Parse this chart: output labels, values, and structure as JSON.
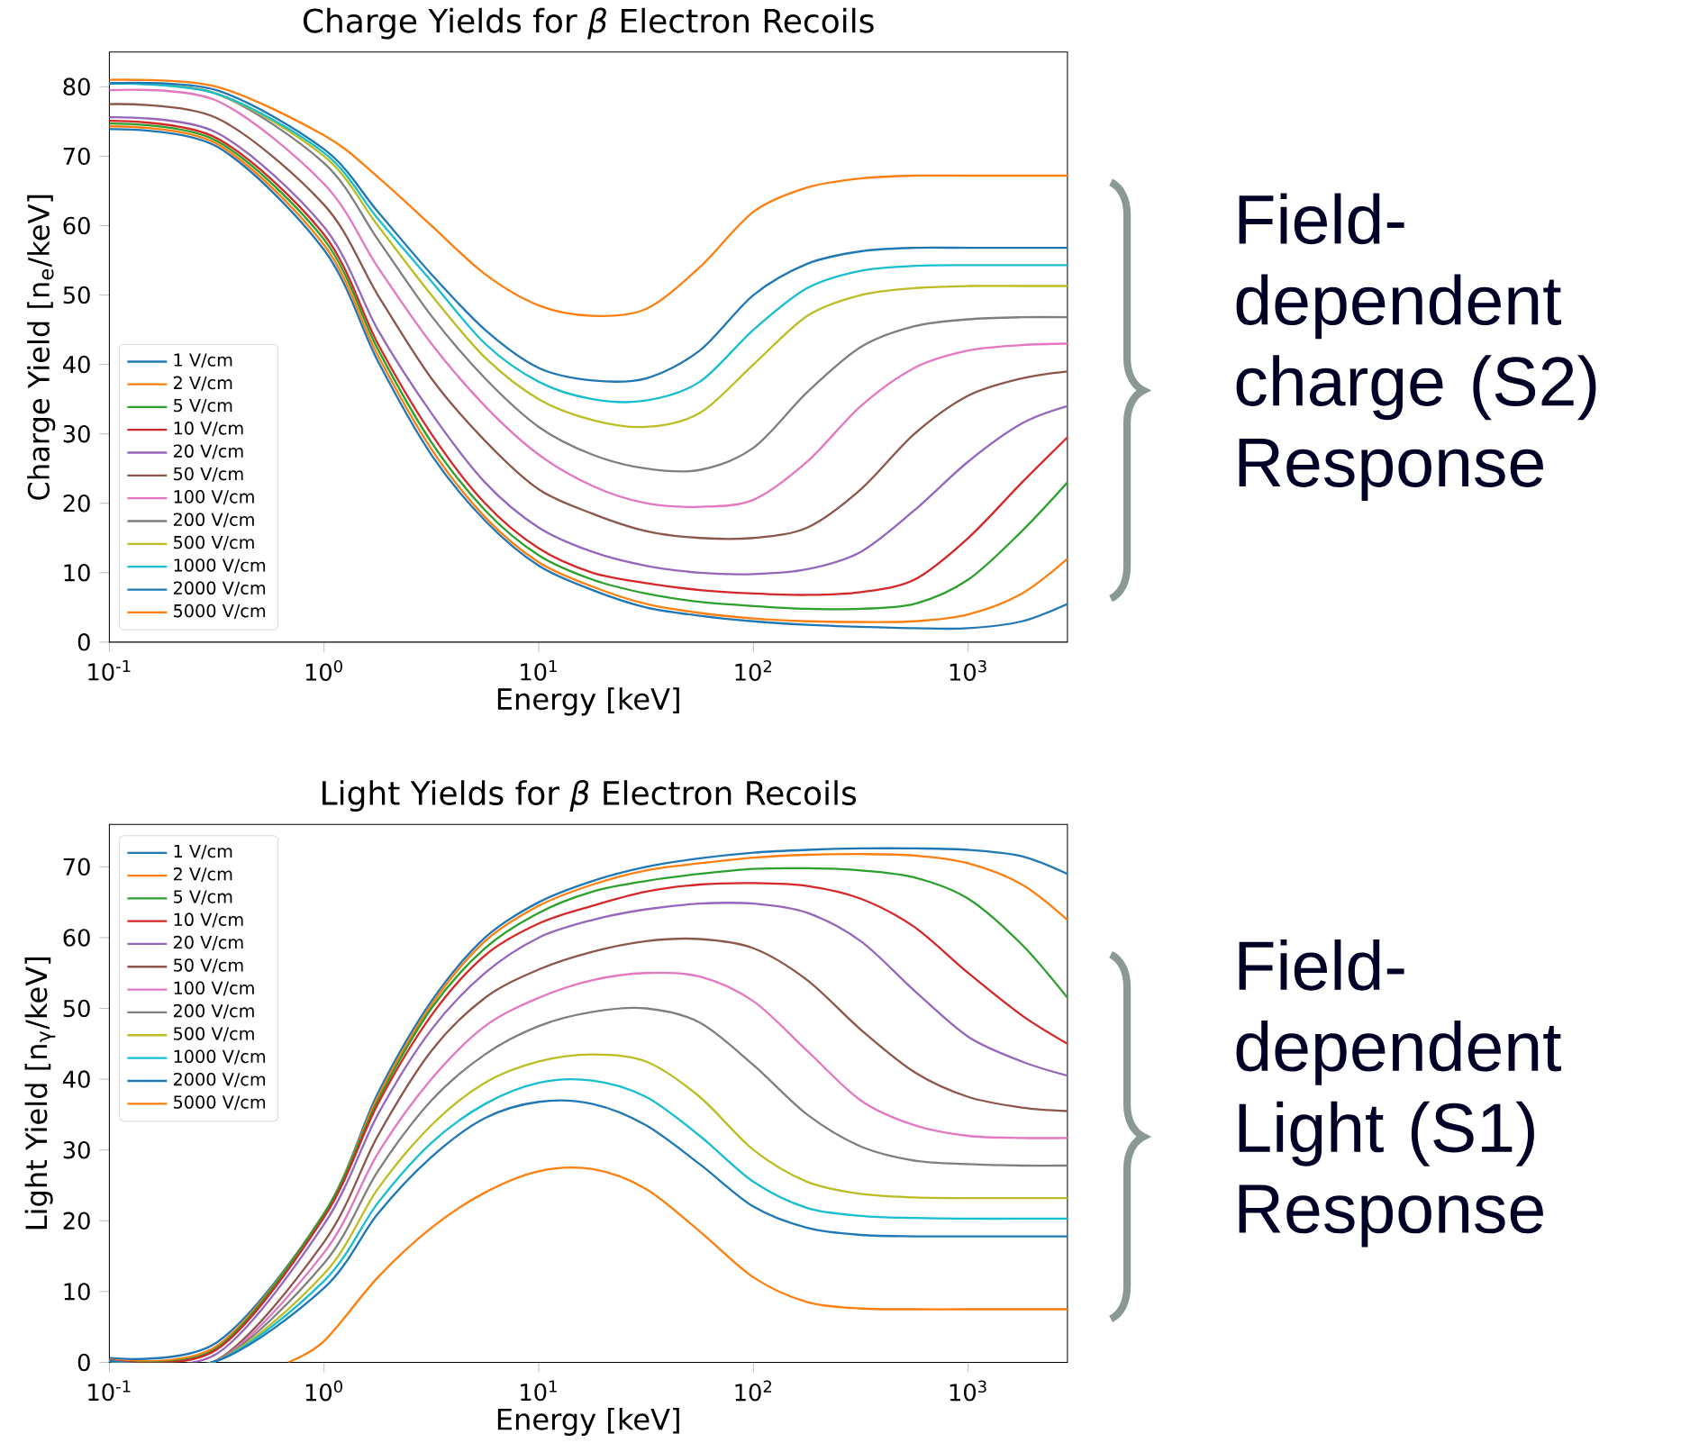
{
  "chart_data": [
    {
      "type": "line",
      "title": "Charge Yields for *β* Electron Recoils",
      "xlabel": "Energy [keV]",
      "ylabel": "Charge Yield [n$_{e}$/keV]",
      "log": "x",
      "legend": "bottom left",
      "marker": "none",
      "line_style": "solid",
      "xlim": [
        0.1,
        2900
      ],
      "ylim": [
        0,
        85
      ],
      "xticks": [
        {
          "value": 0.1,
          "label": "10$^{-1}$"
        },
        {
          "value": 1,
          "label": "10$^{0}$"
        },
        {
          "value": 10,
          "label": "10$^{1}$"
        },
        {
          "value": 100,
          "label": "10$^{2}$"
        },
        {
          "value": 1000,
          "label": "10$^{3}$"
        }
      ],
      "yticks": [
        0,
        10,
        20,
        30,
        40,
        50,
        60,
        70,
        80
      ],
      "x": [
        0.1,
        0.316,
        1,
        1.78,
        3.16,
        5.62,
        10,
        17.8,
        31.6,
        56.2,
        100,
        178,
        316,
        562,
        1000,
        1780,
        2900
      ],
      "series": [
        {
          "name": "1 V/cm",
          "color": "#1f77b4",
          "values": [
            73.9,
            71.4,
            56.5,
            40.5,
            27,
            17.5,
            11,
            7.5,
            5,
            3.8,
            3,
            2.5,
            2.2,
            2,
            2,
            3,
            5.5
          ]
        },
        {
          "name": "2 V/cm",
          "color": "#ff7f0e",
          "values": [
            74.3,
            71.8,
            57.2,
            41.3,
            27.8,
            18,
            11.5,
            8,
            5.5,
            4.2,
            3.4,
            3,
            2.9,
            3,
            4,
            7,
            12
          ]
        },
        {
          "name": "5 V/cm",
          "color": "#2ca02c",
          "values": [
            74.7,
            72.2,
            58,
            42.2,
            28.8,
            19,
            12.5,
            9,
            7,
            5.8,
            5.2,
            4.8,
            4.8,
            5.5,
            9,
            16,
            23
          ]
        },
        {
          "name": "10 V/cm",
          "color": "#d62728",
          "values": [
            75.1,
            72.6,
            58.7,
            43,
            30,
            20,
            13.5,
            10,
            8.5,
            7.5,
            7,
            6.8,
            7.2,
            9,
            15,
            23,
            29.5
          ]
        },
        {
          "name": "20 V/cm",
          "color": "#9467bd",
          "values": [
            75.6,
            73.4,
            59.8,
            45,
            33,
            23,
            16.5,
            13,
            11,
            10,
            9.8,
            10.5,
            13,
            19,
            26,
            31.5,
            34
          ]
        },
        {
          "name": "50 V/cm",
          "color": "#8c564b",
          "values": [
            77.5,
            75.5,
            63,
            50,
            38,
            29,
            22,
            18.5,
            16,
            15,
            15,
            16.5,
            22,
            30,
            35.5,
            38,
            39
          ]
        },
        {
          "name": "100 V/cm",
          "color": "#e377c2",
          "values": [
            79.5,
            78,
            66,
            54,
            43,
            34,
            27,
            22.5,
            20,
            19.5,
            20.5,
            26,
            34,
            39.5,
            42,
            42.8,
            43
          ]
        },
        {
          "name": "200 V/cm",
          "color": "#7f7f7f",
          "values": [
            80.5,
            79,
            69,
            58,
            47,
            38,
            31,
            27,
            25,
            24.8,
            28,
            36,
            42.5,
            45.5,
            46.5,
            46.8,
            46.8
          ]
        },
        {
          "name": "500 V/cm",
          "color": "#bcbd22",
          "values": [
            80.5,
            79,
            70,
            60,
            50,
            41,
            35,
            32,
            31,
            33,
            40,
            47,
            50,
            51,
            51.3,
            51.3,
            51.3
          ]
        },
        {
          "name": "1000 V/cm",
          "color": "#17becf",
          "values": [
            80.5,
            79,
            70.5,
            61,
            52,
            43,
            37.5,
            35,
            34.8,
            37.5,
            45,
            51,
            53.5,
            54.2,
            54.3,
            54.3,
            54.3
          ]
        },
        {
          "name": "2000 V/cm",
          "color": "#1f77b4",
          "values": [
            80.5,
            79.5,
            71,
            62,
            53,
            45,
            39.5,
            37.7,
            38,
            42,
            50,
            54.5,
            56.3,
            56.8,
            56.8,
            56.8,
            56.8
          ]
        },
        {
          "name": "5000 V/cm",
          "color": "#ff7f0e",
          "values": [
            81,
            80,
            73,
            67,
            60,
            53,
            48.5,
            47,
            48,
            54,
            62,
            65.5,
            66.8,
            67.2,
            67.2,
            67.2,
            67.2
          ]
        }
      ],
      "annotations": [
        "Field-dependent charge (S2) Response"
      ]
    },
    {
      "type": "line",
      "title": "Light Yields for *β* Electron Recoils",
      "xlabel": "Energy [keV]",
      "ylabel": "Light Yield [n$_{γ}$/keV]",
      "log": "x",
      "legend": "top left",
      "marker": "none",
      "line_style": "solid",
      "xlim": [
        0.1,
        2900
      ],
      "ylim": [
        0,
        76
      ],
      "xticks": [
        {
          "value": 0.1,
          "label": "10$^{-1}$"
        },
        {
          "value": 1,
          "label": "10$^{0}$"
        },
        {
          "value": 10,
          "label": "10$^{1}$"
        },
        {
          "value": 100,
          "label": "10$^{2}$"
        },
        {
          "value": 1000,
          "label": "10$^{3}$"
        }
      ],
      "yticks": [
        0,
        10,
        20,
        30,
        40,
        50,
        60,
        70
      ],
      "x": [
        0.1,
        0.316,
        1,
        1.78,
        3.16,
        5.62,
        10,
        17.8,
        31.6,
        56.2,
        100,
        178,
        316,
        562,
        1000,
        1780,
        2900
      ],
      "series": [
        {
          "name": "1 V/cm",
          "color": "#1f77b4",
          "values": [
            0.6,
            2.8,
            21,
            38,
            51,
            60,
            65,
            68,
            70,
            71.2,
            72,
            72.4,
            72.6,
            72.6,
            72.4,
            71.5,
            69
          ]
        },
        {
          "name": "2 V/cm",
          "color": "#ff7f0e",
          "values": [
            0.4,
            2.3,
            21,
            37.5,
            50.5,
            59.5,
            64.5,
            67.5,
            69.5,
            70.5,
            71.3,
            71.7,
            71.8,
            71.6,
            70.5,
            67.5,
            62.5
          ]
        },
        {
          "name": "5 V/cm",
          "color": "#2ca02c",
          "values": [
            0.3,
            2,
            21,
            37,
            50,
            58.5,
            63.5,
            66.5,
            68,
            69,
            69.7,
            69.8,
            69.5,
            68.5,
            65.5,
            59,
            51.5
          ]
        },
        {
          "name": "10 V/cm",
          "color": "#d62728",
          "values": [
            0.3,
            1.8,
            20.5,
            36.5,
            49,
            57.5,
            62,
            64.5,
            66.5,
            67.5,
            67.7,
            67.3,
            65.5,
            61.5,
            55,
            49,
            45
          ]
        },
        {
          "name": "20 V/cm",
          "color": "#9467bd",
          "values": [
            0.3,
            1.2,
            19.5,
            35,
            47,
            55,
            60,
            62.5,
            64,
            64.8,
            64.8,
            63.5,
            59.5,
            52.5,
            46,
            42.5,
            40.5
          ]
        },
        {
          "name": "50 V/cm",
          "color": "#8c564b",
          "values": [
            0.3,
            0.3,
            17,
            32,
            44,
            51.5,
            55.5,
            58,
            59.5,
            59.8,
            58.5,
            54,
            47,
            41,
            37.5,
            36,
            35.5
          ]
        },
        {
          "name": "100 V/cm",
          "color": "#e377c2",
          "values": [
            0.2,
            0.2,
            15.5,
            29.5,
            40,
            47.5,
            51.5,
            54,
            55,
            54.5,
            51,
            44,
            37,
            33.5,
            32,
            31.7,
            31.7
          ]
        },
        {
          "name": "200 V/cm",
          "color": "#7f7f7f",
          "values": [
            0.2,
            0.2,
            14,
            27,
            37,
            43.5,
            47.5,
            49.5,
            50,
            48,
            42,
            35,
            30.5,
            28.5,
            28,
            27.8,
            27.8
          ]
        },
        {
          "name": "500 V/cm",
          "color": "#bcbd22",
          "values": [
            0.2,
            0.2,
            12.5,
            24.5,
            33.5,
            39.5,
            42.5,
            43.5,
            42.5,
            37.5,
            30,
            25.5,
            23.8,
            23.3,
            23.2,
            23.2,
            23.2
          ]
        },
        {
          "name": "1000 V/cm",
          "color": "#17becf",
          "values": [
            0.2,
            0.2,
            11.5,
            22.5,
            31,
            36.5,
            39.5,
            39.8,
            37.5,
            32,
            25.5,
            21.8,
            20.7,
            20.4,
            20.3,
            20.3,
            20.3
          ]
        },
        {
          "name": "2000 V/cm",
          "color": "#1f77b4",
          "values": [
            0.2,
            0.2,
            10.5,
            21,
            29,
            34.5,
            36.8,
            36.5,
            33.5,
            28,
            22,
            19,
            18,
            17.8,
            17.8,
            17.8,
            17.8
          ]
        },
        {
          "name": "5000 V/cm",
          "color": "#ff7f0e",
          "x": [
            0.68,
            1,
            1.78,
            3.16,
            5.62,
            10,
            17.8,
            31.6,
            56.2,
            100,
            178,
            316,
            562,
            1000,
            1780,
            2900
          ],
          "values": [
            0,
            3,
            12,
            19,
            24,
            27,
            27.3,
            24.5,
            18.5,
            12,
            8.5,
            7.6,
            7.5,
            7.5,
            7.5,
            7.5
          ]
        }
      ],
      "annotations": [
        "Field-dependent Light (S1) Response"
      ]
    }
  ]
}
